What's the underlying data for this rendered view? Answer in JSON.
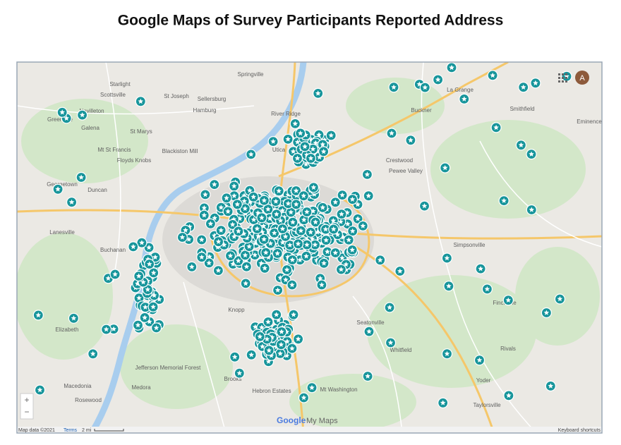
{
  "header": {
    "title": "Google Maps of Survey Participants Reported Address"
  },
  "map": {
    "places": [
      "Springville",
      "Starlight",
      "Scottsville",
      "St Joseph",
      "Sellersburg",
      "Navilleton",
      "Greenville",
      "Hamburg",
      "River Ridge",
      "St Marys",
      "Galena",
      "Mt St Francis",
      "Floyds Knobs",
      "Blackiston Mill",
      "Utica",
      "Georgetown",
      "Duncan",
      "Lanesville",
      "Buchanan",
      "Elizabeth",
      "Macedonia",
      "Rosewood",
      "Medora",
      "Brooks",
      "Hebron Estates",
      "Mt Washington",
      "Knopp",
      "Seatonville",
      "Whitfield",
      "Yoder",
      "Taylorsville",
      "Simpsonville",
      "Finchville",
      "Rivals",
      "Smithfield",
      "Eminence",
      "La Grange",
      "Buckner",
      "Pewee Valley",
      "Crestwood",
      "Jefferson Memorial Forest"
    ],
    "attribution": "Map data ©2021",
    "terms": "Terms",
    "scale": "2 mi",
    "shortcuts": "Keyboard shortcuts",
    "logo": "Google",
    "product": "My Maps",
    "avatar": "A",
    "zoom_in": "+",
    "zoom_out": "−"
  }
}
